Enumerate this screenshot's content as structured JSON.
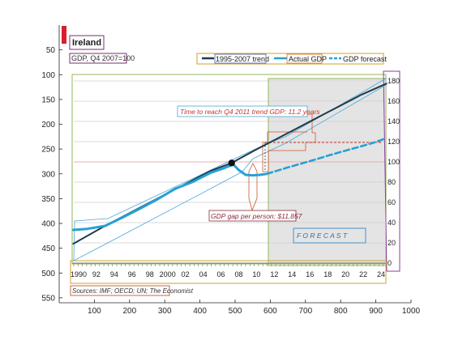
{
  "chart_data": {
    "type": "line",
    "title": "Ireland",
    "subtitle": "GDP, Q4 2007=100",
    "xlim": [
      0,
      1000
    ],
    "ylim": [
      0,
      560
    ],
    "x_ticks": [
      100,
      200,
      300,
      400,
      500,
      600,
      700,
      800,
      900,
      1000
    ],
    "y_ticks": [
      50,
      100,
      150,
      200,
      250,
      300,
      350,
      400,
      450,
      500,
      550
    ],
    "inner_chart": {
      "x_axis_labels": [
        "1990",
        "92",
        "94",
        "96",
        "98",
        "2000",
        "02",
        "04",
        "06",
        "08",
        "10",
        "12",
        "14",
        "16",
        "18",
        "20",
        "22",
        "24"
      ],
      "y_axis_labels": [
        "180",
        "160",
        "140",
        "120",
        "100",
        "80",
        "60",
        "40",
        "20",
        "0"
      ],
      "legend": [
        "1995-2007 trend",
        "Actual GDP",
        "GDP forecast"
      ],
      "annotations": {
        "time_to_reach": "Time to reach Q4 2011 trend GDP: 11.2 years",
        "gdp_gap": "GDP gap per person: $11,857",
        "forecast": "F O R E C A S T"
      },
      "source": "Sources: IMF; OECD; UN; The Economist"
    },
    "series": [
      {
        "name": "1995-2007 trend",
        "color": "#1f3b4d",
        "x": [
          40,
          130,
          230,
          330,
          430,
          490,
          560,
          660,
          760,
          860,
          930
        ],
        "y": [
          441,
          405,
          368,
          331,
          294,
          278,
          251,
          214,
          177,
          140,
          118
        ]
      },
      {
        "name": "Actual GDP",
        "color": "#27a0d4",
        "x": [
          40,
          80,
          130,
          180,
          230,
          280,
          330,
          380,
          430,
          470,
          495,
          510,
          530,
          550,
          570,
          590
        ],
        "y": [
          413,
          411,
          405,
          388,
          370,
          351,
          330,
          316,
          298,
          288,
          281,
          292,
          302,
          303,
          302,
          300
        ]
      },
      {
        "name": "GDP forecast",
        "color": "#27a0d4",
        "x": [
          590,
          650,
          710,
          770,
          830,
          890,
          930
        ],
        "y": [
          300,
          287,
          275,
          262,
          250,
          238,
          228
        ]
      }
    ],
    "grid": true,
    "legend_position": "top"
  }
}
